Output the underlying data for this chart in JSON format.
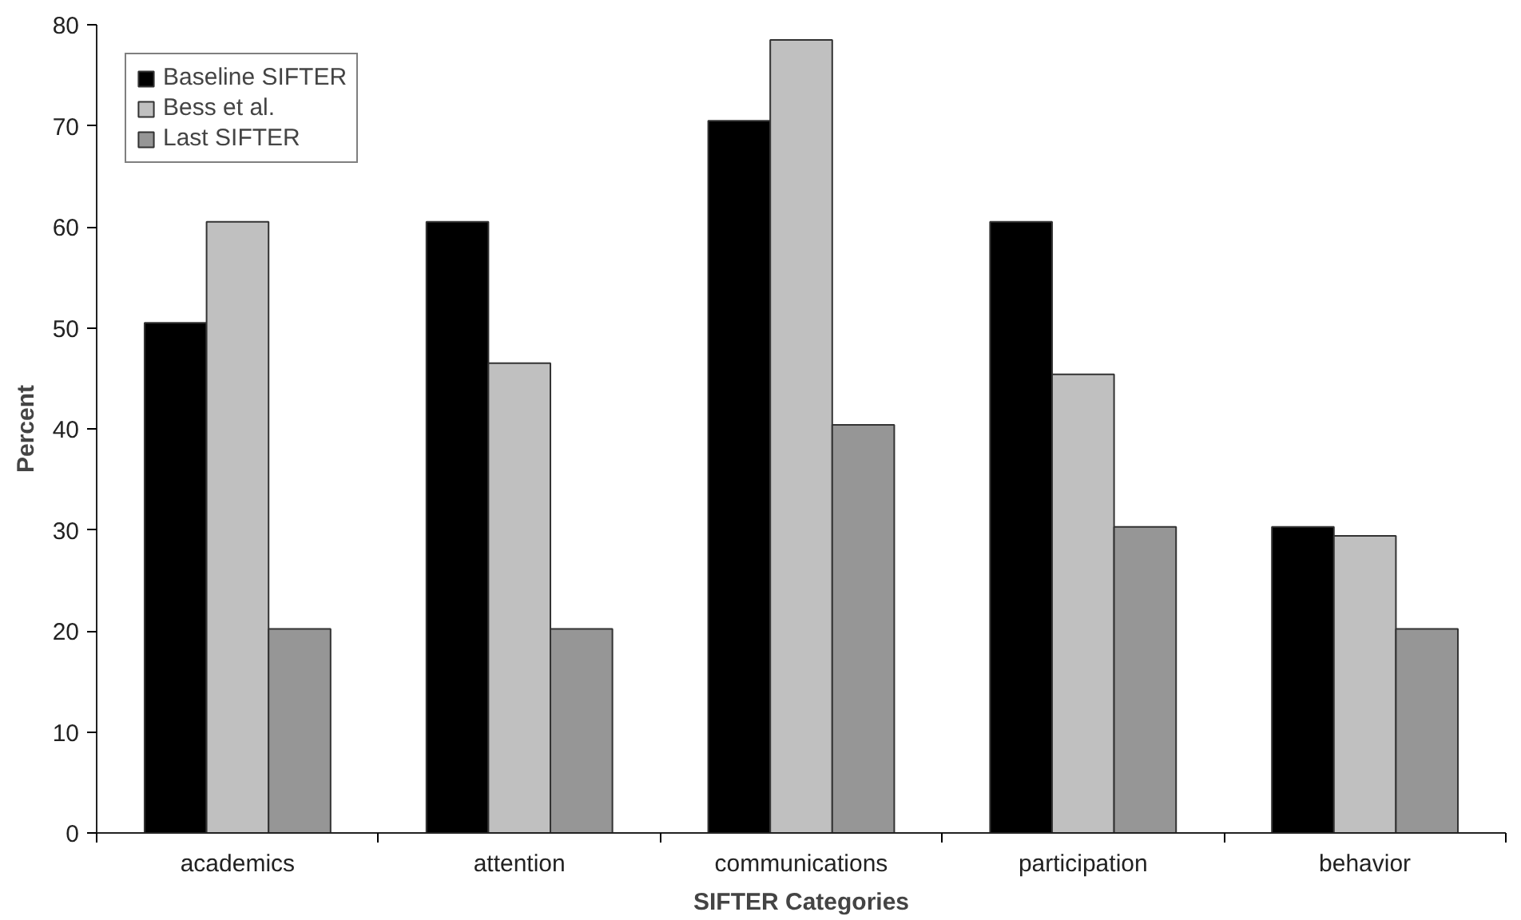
{
  "chart_data": {
    "type": "bar",
    "xlabel": "SIFTER Categories",
    "ylabel": "Percent",
    "categories": [
      "academics",
      "attention",
      "communications",
      "participation",
      "behavior"
    ],
    "series": [
      {
        "name": "Baseline SIFTER",
        "color": "#000000",
        "values": [
          50.5,
          60.5,
          70.5,
          60.5,
          30.3
        ]
      },
      {
        "name": "Bess et al.",
        "color": "#c0c0c0",
        "values": [
          60.5,
          46.5,
          78.5,
          45.4,
          29.4
        ]
      },
      {
        "name": "Last SIFTER",
        "color": "#969696",
        "values": [
          20.2,
          20.2,
          40.4,
          30.3,
          20.2
        ]
      }
    ],
    "ylim": [
      0,
      80
    ],
    "yticks": [
      0,
      10,
      20,
      30,
      40,
      50,
      60,
      70,
      80
    ],
    "grid": false,
    "legend": "top left"
  }
}
